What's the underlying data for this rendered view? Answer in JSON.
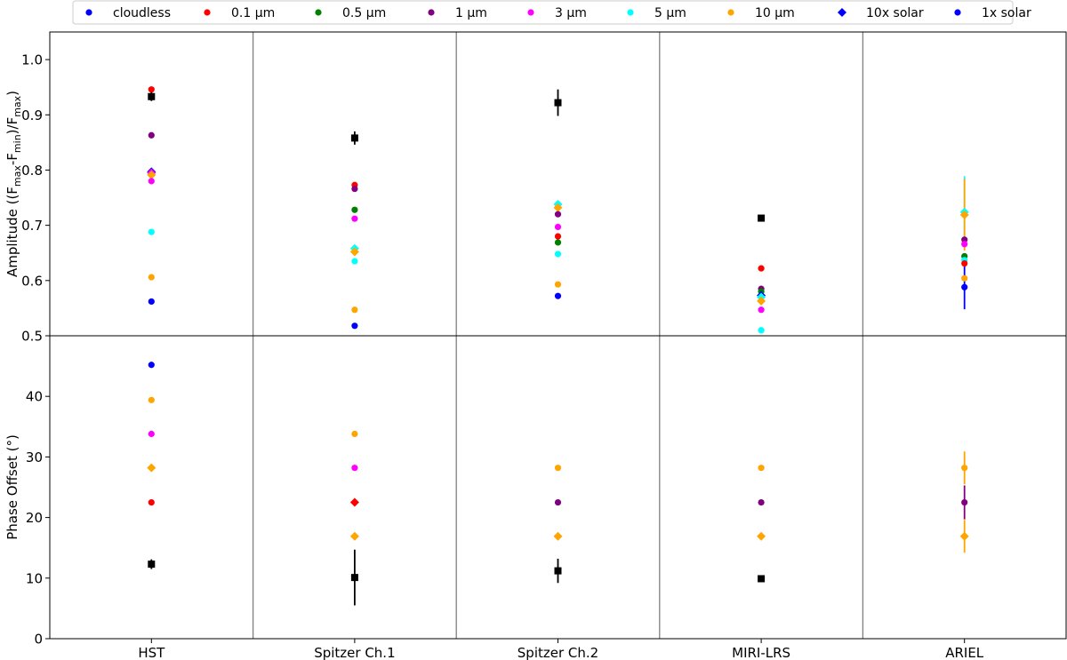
{
  "chart_data": {
    "type": "scatter",
    "instruments": [
      "HST",
      "Spitzer Ch.1",
      "Spitzer Ch.2",
      "MIRI-LRS",
      "ARIEL"
    ],
    "legend": {
      "placement": "top-center",
      "entries": [
        {
          "label": "cloudless",
          "color": "#0000ff",
          "marker": "circle"
        },
        {
          "label": "0.1 µm",
          "color": "#ff0000",
          "marker": "circle"
        },
        {
          "label": "0.5 µm",
          "color": "#008000",
          "marker": "circle"
        },
        {
          "label": "1 µm",
          "color": "#800080",
          "marker": "circle"
        },
        {
          "label": "3 µm",
          "color": "#ff00ff",
          "marker": "circle"
        },
        {
          "label": "5 µm",
          "color": "#00ffff",
          "marker": "circle"
        },
        {
          "label": "10 µm",
          "color": "#ffa500",
          "marker": "circle"
        },
        {
          "label": "10x solar",
          "color": "#0000ff",
          "marker": "diamond"
        },
        {
          "label": "1x solar",
          "color": "#0000ff",
          "marker": "circle"
        }
      ]
    },
    "panels": [
      {
        "id": "amplitude",
        "ylabel": "Amplitude ((F_max-F_min)/F_max)",
        "ylabel_parts": {
          "prefix": "Amplitude ((F",
          "sub1": "max",
          "mid": "-F",
          "sub2": "min",
          "mid2": ")/F",
          "sub3": "max",
          "suffix": ")"
        },
        "ylim": [
          0.5,
          1.05
        ],
        "yticks": [
          0.5,
          0.6,
          0.7,
          0.8,
          0.9,
          1.0
        ],
        "ytick_labels": [
          "0.5",
          "0.6",
          "0.7",
          "0.8",
          "0.9",
          "1.0"
        ],
        "points": [
          {
            "instrument": 0,
            "value": 0.946,
            "color": "#ff0000",
            "marker": "circle"
          },
          {
            "instrument": 0,
            "value": 0.863,
            "color": "#800080",
            "marker": "circle"
          },
          {
            "instrument": 0,
            "value": 0.797,
            "color": "#0000ff",
            "marker": "diamond"
          },
          {
            "instrument": 0,
            "value": 0.795,
            "color": "#ff00ff",
            "marker": "diamond"
          },
          {
            "instrument": 0,
            "value": 0.791,
            "color": "#ffa500",
            "marker": "diamond"
          },
          {
            "instrument": 0,
            "value": 0.78,
            "color": "#ff00ff",
            "marker": "circle"
          },
          {
            "instrument": 0,
            "value": 0.688,
            "color": "#00ffff",
            "marker": "circle"
          },
          {
            "instrument": 0,
            "value": 0.606,
            "color": "#ffa500",
            "marker": "circle"
          },
          {
            "instrument": 0,
            "value": 0.562,
            "color": "#0000ff",
            "marker": "circle"
          },
          {
            "instrument": 1,
            "value": 0.773,
            "color": "#ff0000",
            "marker": "circle"
          },
          {
            "instrument": 1,
            "value": 0.766,
            "color": "#800080",
            "marker": "circle"
          },
          {
            "instrument": 1,
            "value": 0.728,
            "color": "#008000",
            "marker": "circle"
          },
          {
            "instrument": 1,
            "value": 0.712,
            "color": "#ff00ff",
            "marker": "circle"
          },
          {
            "instrument": 1,
            "value": 0.658,
            "color": "#00ffff",
            "marker": "diamond"
          },
          {
            "instrument": 1,
            "value": 0.652,
            "color": "#ffa500",
            "marker": "diamond"
          },
          {
            "instrument": 1,
            "value": 0.635,
            "color": "#00ffff",
            "marker": "circle"
          },
          {
            "instrument": 1,
            "value": 0.547,
            "color": "#ffa500",
            "marker": "circle"
          },
          {
            "instrument": 1,
            "value": 0.518,
            "color": "#0000ff",
            "marker": "circle"
          },
          {
            "instrument": 2,
            "value": 0.738,
            "color": "#00ffff",
            "marker": "diamond"
          },
          {
            "instrument": 2,
            "value": 0.732,
            "color": "#ffa500",
            "marker": "diamond"
          },
          {
            "instrument": 2,
            "value": 0.72,
            "color": "#800080",
            "marker": "circle"
          },
          {
            "instrument": 2,
            "value": 0.697,
            "color": "#ff00ff",
            "marker": "circle"
          },
          {
            "instrument": 2,
            "value": 0.68,
            "color": "#ff0000",
            "marker": "circle"
          },
          {
            "instrument": 2,
            "value": 0.669,
            "color": "#008000",
            "marker": "circle"
          },
          {
            "instrument": 2,
            "value": 0.648,
            "color": "#00ffff",
            "marker": "circle"
          },
          {
            "instrument": 2,
            "value": 0.593,
            "color": "#ffa500",
            "marker": "circle"
          },
          {
            "instrument": 2,
            "value": 0.572,
            "color": "#0000ff",
            "marker": "circle"
          },
          {
            "instrument": 3,
            "value": 0.622,
            "color": "#ff0000",
            "marker": "circle"
          },
          {
            "instrument": 3,
            "value": 0.585,
            "color": "#800080",
            "marker": "circle"
          },
          {
            "instrument": 3,
            "value": 0.58,
            "color": "#008000",
            "marker": "circle"
          },
          {
            "instrument": 3,
            "value": 0.573,
            "color": "#0000ff",
            "marker": "diamond"
          },
          {
            "instrument": 3,
            "value": 0.57,
            "color": "#00ffff",
            "marker": "diamond"
          },
          {
            "instrument": 3,
            "value": 0.563,
            "color": "#ffa500",
            "marker": "diamond"
          },
          {
            "instrument": 3,
            "value": 0.547,
            "color": "#ff00ff",
            "marker": "circle"
          },
          {
            "instrument": 3,
            "value": 0.51,
            "color": "#00ffff",
            "marker": "circle"
          },
          {
            "instrument": 4,
            "value": 0.724,
            "color": "#00ffff",
            "marker": "diamond",
            "err": 0.065,
            "err_color": "#00ffff"
          },
          {
            "instrument": 4,
            "value": 0.719,
            "color": "#ffa500",
            "marker": "diamond",
            "err": 0.065,
            "err_color": "#ffa500"
          },
          {
            "instrument": 4,
            "value": 0.674,
            "color": "#800080",
            "marker": "circle"
          },
          {
            "instrument": 4,
            "value": 0.666,
            "color": "#ff00ff",
            "marker": "circle"
          },
          {
            "instrument": 4,
            "value": 0.644,
            "color": "#008000",
            "marker": "circle"
          },
          {
            "instrument": 4,
            "value": 0.637,
            "color": "#00ffff",
            "marker": "circle"
          },
          {
            "instrument": 4,
            "value": 0.631,
            "color": "#ff0000",
            "marker": "circle"
          },
          {
            "instrument": 4,
            "value": 0.604,
            "color": "#ffa500",
            "marker": "circle"
          },
          {
            "instrument": 4,
            "value": 0.588,
            "color": "#0000ff",
            "marker": "circle",
            "err": 0.04,
            "err_color": "#0000ff"
          }
        ],
        "observed": [
          {
            "instrument": 0,
            "value": 0.933,
            "err": 0.008
          },
          {
            "instrument": 1,
            "value": 0.858,
            "err": 0.012
          },
          {
            "instrument": 2,
            "value": 0.922,
            "err": 0.024
          },
          {
            "instrument": 3,
            "value": 0.713,
            "err": 0.0
          }
        ]
      },
      {
        "id": "phase",
        "ylabel": "Phase Offset (°)",
        "ylim": [
          0,
          50
        ],
        "yticks": [
          0,
          10,
          20,
          30,
          40
        ],
        "ytick_labels": [
          "0",
          "10",
          "20",
          "30",
          "40"
        ],
        "points": [
          {
            "instrument": 0,
            "value": 45.2,
            "color": "#0000ff",
            "marker": "circle"
          },
          {
            "instrument": 0,
            "value": 39.4,
            "color": "#ffa500",
            "marker": "circle"
          },
          {
            "instrument": 0,
            "value": 33.8,
            "color": "#ff00ff",
            "marker": "circle"
          },
          {
            "instrument": 0,
            "value": 28.2,
            "color": "#ffa500",
            "marker": "diamond"
          },
          {
            "instrument": 0,
            "value": 22.5,
            "color": "#ff0000",
            "marker": "circle"
          },
          {
            "instrument": 1,
            "value": 33.8,
            "color": "#ffa500",
            "marker": "circle"
          },
          {
            "instrument": 1,
            "value": 28.2,
            "color": "#ff00ff",
            "marker": "circle"
          },
          {
            "instrument": 1,
            "value": 22.5,
            "color": "#ff0000",
            "marker": "diamond"
          },
          {
            "instrument": 1,
            "value": 16.9,
            "color": "#ffa500",
            "marker": "diamond"
          },
          {
            "instrument": 2,
            "value": 28.2,
            "color": "#ffa500",
            "marker": "circle"
          },
          {
            "instrument": 2,
            "value": 22.5,
            "color": "#800080",
            "marker": "circle"
          },
          {
            "instrument": 2,
            "value": 16.9,
            "color": "#ffa500",
            "marker": "diamond"
          },
          {
            "instrument": 3,
            "value": 28.2,
            "color": "#ffa500",
            "marker": "circle"
          },
          {
            "instrument": 3,
            "value": 22.5,
            "color": "#800080",
            "marker": "circle"
          },
          {
            "instrument": 3,
            "value": 16.9,
            "color": "#ffa500",
            "marker": "diamond"
          },
          {
            "instrument": 4,
            "value": 28.2,
            "color": "#ffa500",
            "marker": "circle",
            "err": 2.7,
            "err_color": "#ffa500"
          },
          {
            "instrument": 4,
            "value": 22.5,
            "color": "#800080",
            "marker": "circle",
            "err": 2.8,
            "err_color": "#800080"
          },
          {
            "instrument": 4,
            "value": 16.9,
            "color": "#ffa500",
            "marker": "diamond",
            "err": 2.7,
            "err_color": "#ffa500"
          }
        ],
        "observed": [
          {
            "instrument": 0,
            "value": 12.3,
            "err": 0.8
          },
          {
            "instrument": 1,
            "value": 10.1,
            "err": 4.6
          },
          {
            "instrument": 2,
            "value": 11.2,
            "err": 2.0
          },
          {
            "instrument": 3,
            "value": 9.9,
            "err": 0.0
          }
        ]
      }
    ]
  }
}
